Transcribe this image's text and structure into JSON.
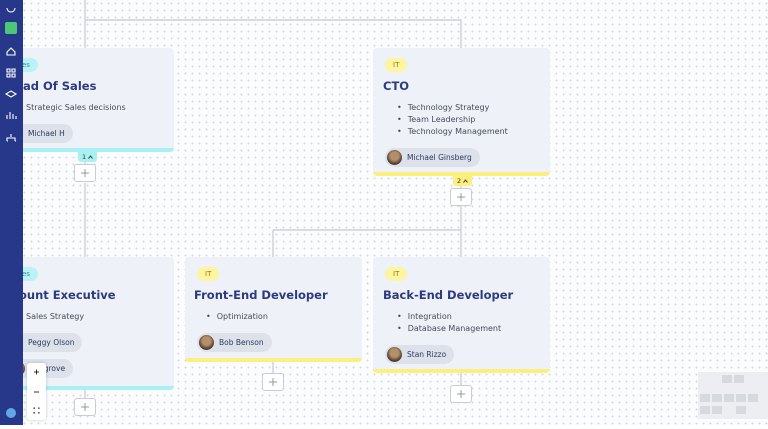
{
  "cards": [
    {
      "tag": "es",
      "title": "ad Of Sales",
      "items": [
        "Strategic Sales decisions"
      ],
      "people": [
        "Michael H"
      ],
      "count": "1"
    },
    {
      "tag": "IT",
      "title": "CTO",
      "items": [
        "Technology Strategy",
        "Team Leadership",
        "Technology Management"
      ],
      "people": [
        "Michael Ginsberg"
      ],
      "count": "2"
    },
    {
      "tag": "es",
      "title": "ount Executive",
      "items": [
        "Sales Strategy"
      ],
      "people": [
        "Peggy Olson",
        "Cosgrove"
      ]
    },
    {
      "tag": "IT",
      "title": "Front-End Developer",
      "items": [
        "Optimization"
      ],
      "people": [
        "Bob Benson"
      ]
    },
    {
      "tag": "IT",
      "title": "Back-End Developer",
      "items": [
        "Integration",
        "Database Management"
      ],
      "people": [
        "Stan Rizzo"
      ]
    }
  ]
}
